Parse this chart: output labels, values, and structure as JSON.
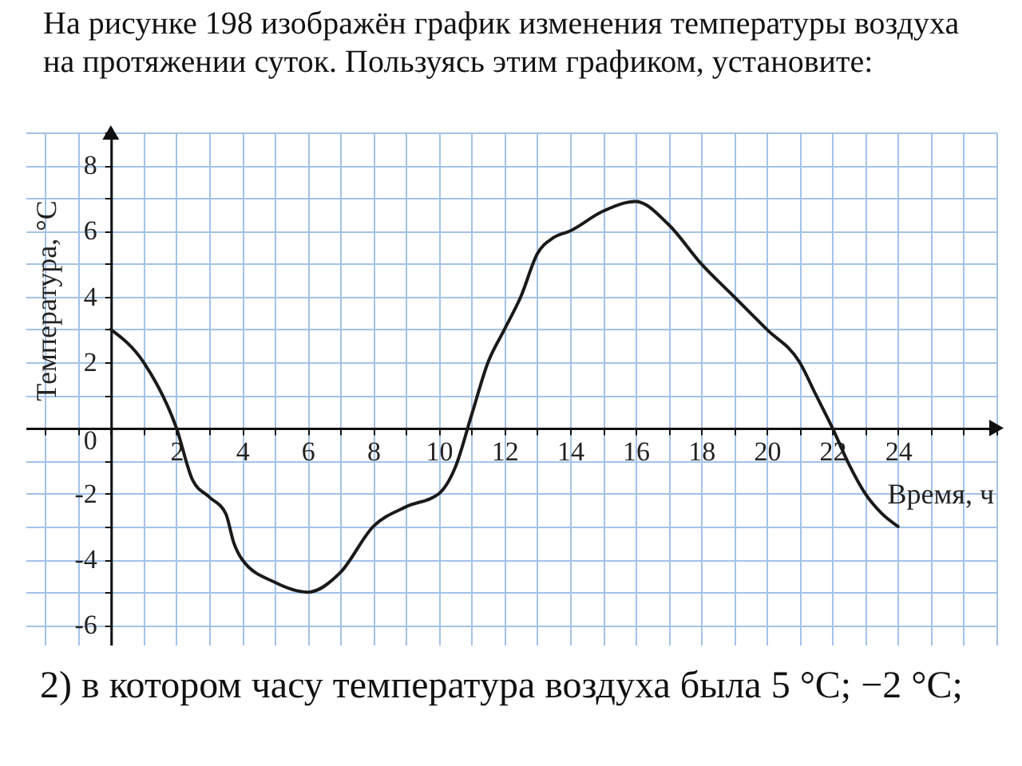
{
  "chart_data": {
    "type": "line",
    "title": "На рисунке 198 изображён график изменения температуры воздуха на протяжении суток. Пользуясь этим графиком, установите:",
    "xlabel": "Время, ч",
    "ylabel": "Температура, °C",
    "x": [
      0,
      1,
      2,
      2.5,
      3,
      3.5,
      3.75,
      4,
      5,
      6,
      7,
      8,
      9,
      10,
      10.5,
      11,
      11.5,
      12,
      12.5,
      13,
      13.5,
      14,
      15,
      16,
      17,
      18,
      19,
      20,
      21,
      21.5,
      22,
      22.5,
      23,
      23.5,
      24
    ],
    "series": [
      {
        "color": "#1a1a1a",
        "values": [
          3,
          2,
          0,
          -1.6,
          -2.1,
          -2.6,
          -3.5,
          -4,
          -4.7,
          -5,
          -4.4,
          -3,
          -2.4,
          -2,
          -1.2,
          0.4,
          2,
          3,
          4,
          5.3,
          5.8,
          6,
          6.6,
          6.9,
          6.2,
          5,
          4,
          3,
          2,
          1,
          0,
          -1.1,
          -2,
          -2.6,
          -3
        ]
      }
    ],
    "xlim": [
      -2.6,
      27
    ],
    "ylim": [
      -6.6,
      9
    ],
    "xticks": [
      {
        "value": -2,
        "label": null
      },
      {
        "value": -1,
        "label": null
      },
      {
        "value": 0,
        "label": null
      },
      {
        "value": 1,
        "label": null
      },
      2,
      {
        "value": 3,
        "label": null
      },
      4,
      {
        "value": 5,
        "label": null
      },
      6,
      {
        "value": 7,
        "label": null
      },
      8,
      {
        "value": 9,
        "label": null
      },
      10,
      {
        "value": 11,
        "label": null
      },
      12,
      {
        "value": 13,
        "label": null
      },
      14,
      {
        "value": 15,
        "label": null
      },
      16,
      {
        "value": 17,
        "label": null
      },
      18,
      {
        "value": 19,
        "label": null
      },
      20,
      {
        "value": 21,
        "label": null
      },
      22,
      {
        "value": 23,
        "label": null
      },
      24,
      {
        "value": 25,
        "label": null
      },
      {
        "value": 26,
        "label": null
      },
      {
        "value": 27,
        "label": null
      }
    ],
    "yticks": [
      -6,
      {
        "value": -5,
        "label": null
      },
      -4,
      {
        "value": -3,
        "label": null
      },
      -2,
      {
        "value": -1,
        "label": null
      },
      0,
      {
        "value": 1,
        "label": null
      },
      2,
      {
        "value": 3,
        "label": null
      },
      4,
      {
        "value": 5,
        "label": null
      },
      6,
      {
        "value": 7,
        "label": null
      },
      8,
      {
        "value": 9,
        "label": null
      }
    ],
    "grid": true,
    "line_style": "solid",
    "annotations": [
      "2) в котором часу температура воздуха была 5 °C; −2 °C;"
    ]
  }
}
